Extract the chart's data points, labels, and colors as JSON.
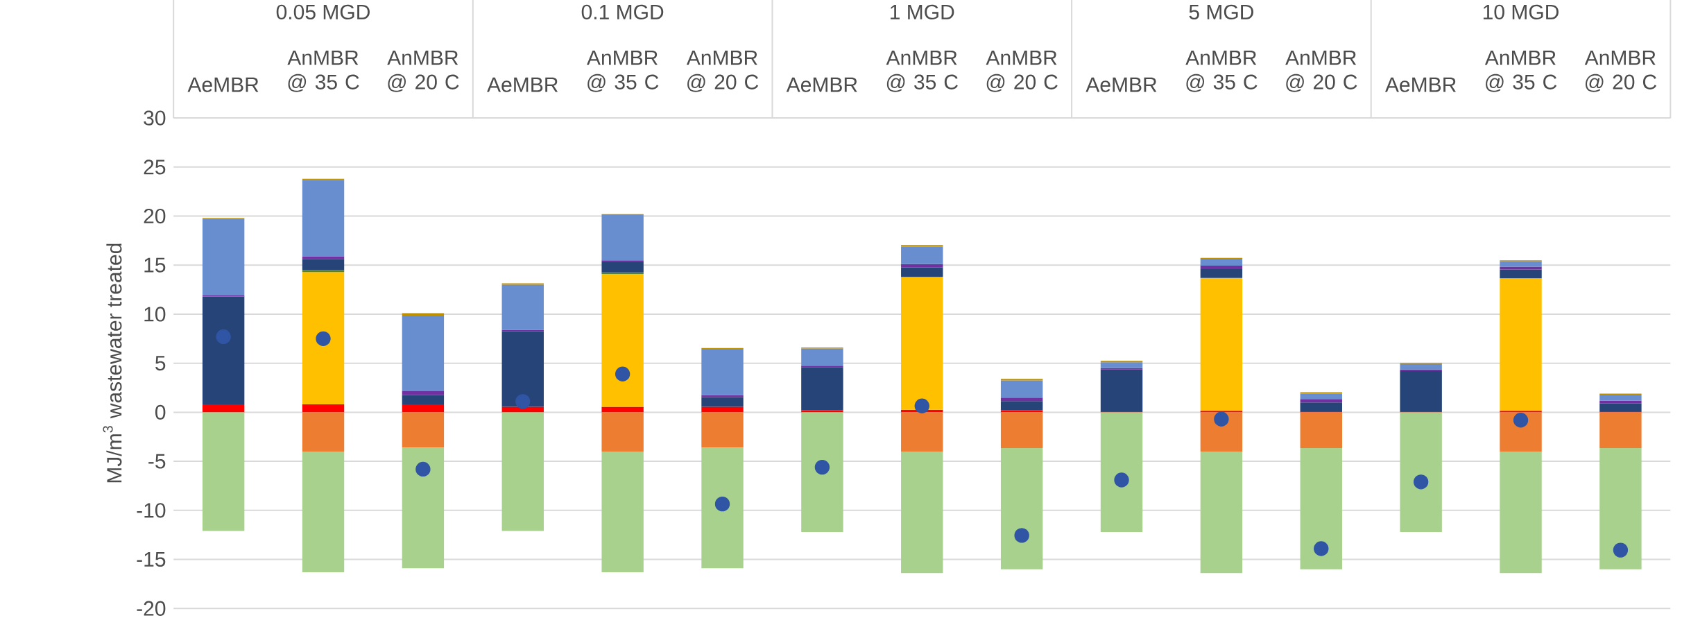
{
  "chart_data": {
    "type": "bar",
    "stacked": true,
    "ylabel": "MJ/m$^{3}$ wastewater treated",
    "categories": [
      "AeMBR",
      "AnMBR @ 35 C",
      "AnMBR @ 20 C",
      "AeMBR",
      "AnMBR @ 35 C",
      "AnMBR @ 20 C",
      "AeMBR",
      "AnMBR @ 35 C",
      "AnMBR @ 20 C",
      "AeMBR",
      "AnMBR @ 35 C",
      "AnMBR @ 20 C",
      "AeMBR",
      "AnMBR @ 35 C",
      "AnMBR @ 20 C"
    ],
    "annotations": [
      "0.05 MGD",
      "0.1 MGD",
      "1 MGD",
      "5 MGD",
      "10 MGD"
    ],
    "series": [
      {
        "color": "#ff0000",
        "values": [
          0.8,
          0.8,
          0.8,
          0.55,
          0.55,
          0.55,
          0.2,
          0.25,
          0.2,
          0.1,
          0.15,
          0.1,
          0.1,
          0.15,
          0.1
        ]
      },
      {
        "color": "#ffc000",
        "values": [
          0,
          13.5,
          0,
          0,
          13.55,
          0,
          0,
          13.55,
          0,
          0,
          13.55,
          0,
          0,
          13.5,
          0
        ]
      },
      {
        "color": "#548235",
        "values": [
          0,
          0.2,
          0,
          0,
          0.15,
          0,
          0,
          0,
          0,
          0,
          0,
          0,
          0,
          0,
          0
        ]
      },
      {
        "color": "#264478",
        "values": [
          11.0,
          1.1,
          0.95,
          7.7,
          1.05,
          1.0,
          4.4,
          0.95,
          0.95,
          4.25,
          0.9,
          0.9,
          4.1,
          0.9,
          0.8
        ]
      },
      {
        "color": "#7030a0",
        "values": [
          0.1,
          0.3,
          0.4,
          0.15,
          0.2,
          0.2,
          0.15,
          0.35,
          0.35,
          0.15,
          0.35,
          0.35,
          0.15,
          0.3,
          0.3
        ]
      },
      {
        "color": "#698ed0",
        "values": [
          7.8,
          7.8,
          7.7,
          4.6,
          4.6,
          4.65,
          1.75,
          1.8,
          1.75,
          0.6,
          0.7,
          0.55,
          0.6,
          0.55,
          0.6
        ]
      },
      {
        "color": "#bf9000",
        "values": [
          0.1,
          0.1,
          0.25,
          0.15,
          0.1,
          0.15,
          0.1,
          0.15,
          0.15,
          0.15,
          0.1,
          0.15,
          0.1,
          0.1,
          0.1
        ]
      },
      {
        "color": "#ed7d31",
        "values": [
          0,
          -4.0,
          -3.6,
          0,
          -4.0,
          -3.6,
          0,
          -4.0,
          -3.65,
          0,
          -4.0,
          -3.65,
          0,
          -4.0,
          -3.65
        ]
      },
      {
        "color": "#a9d18e",
        "values": [
          -12.1,
          -12.3,
          -12.3,
          -12.1,
          -12.3,
          -12.3,
          -12.2,
          -12.4,
          -12.35,
          -12.2,
          -12.4,
          -12.35,
          -12.2,
          -12.4,
          -12.35
        ]
      },
      {
        "type": "scatter",
        "marker": "circle",
        "color": "#2f55a4",
        "values": [
          7.7,
          7.5,
          -5.8,
          1.1,
          3.9,
          -9.35,
          -5.6,
          0.65,
          -12.55,
          -6.9,
          -0.7,
          -13.9,
          -7.1,
          -0.8,
          -14.05
        ]
      }
    ],
    "ylim": [
      -20,
      30
    ],
    "yticks": [
      -20,
      -15,
      -10,
      -5,
      0,
      5,
      10,
      15,
      20,
      25,
      30
    ],
    "grid": "y"
  }
}
